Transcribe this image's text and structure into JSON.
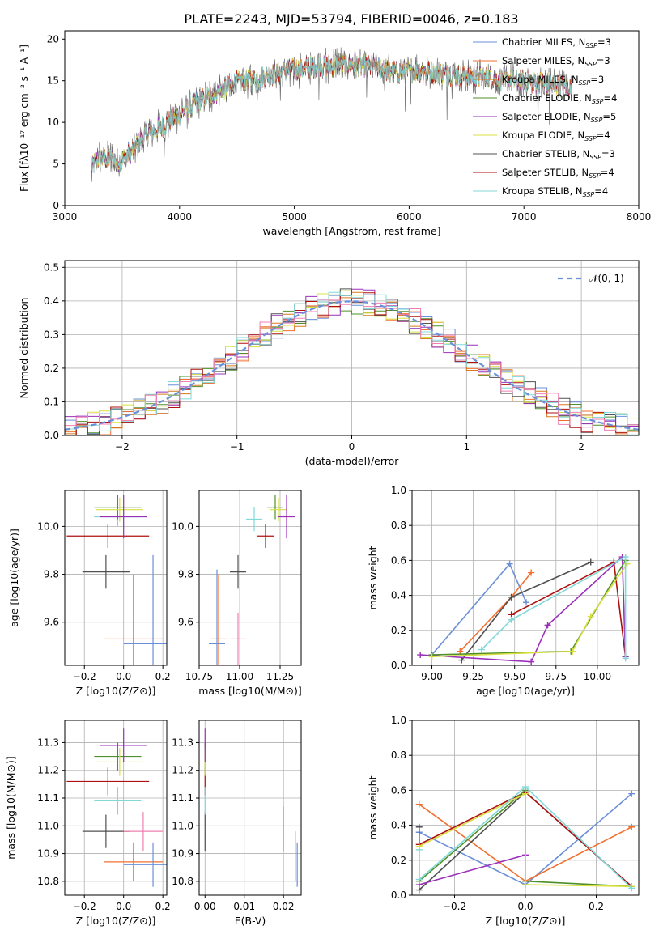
{
  "title": "PLATE=2243, MJD=53794, FIBERID=0046, z=0.183",
  "colors": {
    "grid": "#b0b0b0",
    "chabrier_miles": "#6a8fd8",
    "salpeter_miles": "#f07030",
    "kroupa_miles": "#d87820",
    "chabrier_elodie": "#4f8f2a",
    "salpeter_elodie": "#9a30b8",
    "kroupa_elodie": "#d8e040",
    "chabrier_stelib": "#505050",
    "salpeter_stelib": "#b01010",
    "kroupa_stelib": "#80d8d8",
    "pink": "#f080b0",
    "normal": "#6a8fd8"
  },
  "chart_data": [
    {
      "id": "spectrum",
      "type": "line",
      "xlabel": "wavelength [Angstrom, rest frame]",
      "ylabel": "Flux [fλ10⁻¹⁷ erg cm⁻² s⁻¹ A⁻¹]",
      "xlim": [
        3000,
        8000
      ],
      "ylim": [
        0,
        21
      ],
      "xticks": [
        3000,
        4000,
        5000,
        6000,
        7000,
        8000
      ],
      "yticks": [
        0,
        5,
        10,
        15,
        20
      ],
      "grid": false,
      "legend_position": "top-right",
      "continuum": [
        [
          3230,
          4.5
        ],
        [
          3300,
          5.8
        ],
        [
          3500,
          5.4
        ],
        [
          3600,
          6.8
        ],
        [
          3700,
          8.5
        ],
        [
          3850,
          9.5
        ],
        [
          3950,
          10.5
        ],
        [
          4050,
          11.5
        ],
        [
          4150,
          12.5
        ],
        [
          4300,
          13.5
        ],
        [
          4500,
          14.8
        ],
        [
          4700,
          15.3
        ],
        [
          4900,
          16.2
        ],
        [
          5100,
          16.5
        ],
        [
          5300,
          16.9
        ],
        [
          5500,
          17.0
        ],
        [
          5700,
          16.7
        ],
        [
          5900,
          16.0
        ],
        [
          6100,
          16.2
        ],
        [
          6300,
          15.8
        ],
        [
          6500,
          15.5
        ],
        [
          6700,
          15.3
        ],
        [
          6900,
          15.0
        ],
        [
          7100,
          14.8
        ],
        [
          7300,
          14.5
        ],
        [
          7420,
          14.0
        ]
      ],
      "series": [
        {
          "name": "Chabrier MILES, N_SSP=3",
          "color": "#6a8fd8"
        },
        {
          "name": "Salpeter MILES, N_SSP=3",
          "color": "#f07030"
        },
        {
          "name": "Kroupa MILES, N_SSP=3",
          "color": "#d87820"
        },
        {
          "name": "Chabrier ELODIE, N_SSP=4",
          "color": "#4f8f2a"
        },
        {
          "name": "Salpeter ELODIE, N_SSP=5",
          "color": "#9a30b8"
        },
        {
          "name": "Kroupa ELODIE, N_SSP=4",
          "color": "#d8e040"
        },
        {
          "name": "Chabrier STELIB, N_SSP=3",
          "color": "#505050"
        },
        {
          "name": "Salpeter STELIB, N_SSP=4",
          "color": "#b01010"
        },
        {
          "name": "Kroupa STELIB, N_SSP=4",
          "color": "#80d8d8"
        }
      ]
    },
    {
      "id": "residuals",
      "type": "line",
      "xlabel": "(data-model)/error",
      "ylabel": "Normed distribution",
      "xlim": [
        -2.5,
        2.5
      ],
      "ylim": [
        0,
        0.52
      ],
      "xticks": [
        -2,
        -1,
        0,
        1,
        2
      ],
      "yticks": [
        0.0,
        0.1,
        0.2,
        0.3,
        0.4,
        0.5
      ],
      "grid": true,
      "legend_position": "top-right",
      "legend": "𝒩(0, 1)",
      "bin_width": 0.1,
      "bin_start": -2.5,
      "hist_colors": [
        "#6a8fd8",
        "#f07030",
        "#d87820",
        "#4f8f2a",
        "#9a30b8",
        "#d8e040",
        "#505050",
        "#b01010",
        "#80d8d8",
        "#f080b0"
      ]
    },
    {
      "id": "age_vs_z",
      "type": "scatter",
      "xlabel": "Z [log10(Z/Z⊙)]",
      "ylabel": "age  [log10(age/yr)]",
      "xlim": [
        -0.3,
        0.22
      ],
      "ylim": [
        9.42,
        10.15
      ],
      "xticks": [
        -0.2,
        0.0,
        0.2
      ],
      "yticks": [
        9.6,
        9.8,
        10.0
      ],
      "grid": true,
      "points": [
        {
          "x": -0.09,
          "y": 9.81,
          "xerr": 0.12,
          "yerr": 0.07,
          "color": "#505050"
        },
        {
          "x": -0.08,
          "y": 9.96,
          "xerr": 0.21,
          "yerr": 0.05,
          "color": "#b01010"
        },
        {
          "x": -0.03,
          "y": 10.04,
          "xerr": 0.12,
          "yerr": 0.04,
          "color": "#80d8d8"
        },
        {
          "x": -0.03,
          "y": 10.08,
          "xerr": 0.12,
          "yerr": 0.05,
          "color": "#4f8f2a"
        },
        {
          "x": -0.02,
          "y": 10.07,
          "xerr": 0.12,
          "yerr": 0.05,
          "color": "#d8e040"
        },
        {
          "x": 0.0,
          "y": 10.04,
          "xerr": 0.12,
          "yerr": 0.09,
          "color": "#9a30b8"
        },
        {
          "x": 0.05,
          "y": 9.53,
          "xerr": 0.15,
          "yerr": 0.27,
          "color": "#f07030"
        },
        {
          "x": 0.15,
          "y": 9.51,
          "xerr": 0.15,
          "yerr": 0.37,
          "color": "#6a8fd8"
        }
      ]
    },
    {
      "id": "age_vs_mass",
      "type": "scatter",
      "xlabel": "mass [log10(M/M⊙)]",
      "ylabel": "",
      "xlim": [
        10.75,
        11.38
      ],
      "ylim": [
        9.42,
        10.15
      ],
      "xticks": [
        10.75,
        11.0,
        11.25
      ],
      "yticks": [
        9.6,
        9.8,
        10.0
      ],
      "grid": true,
      "points": [
        {
          "x": 10.99,
          "y": 9.81,
          "xerr": 0.05,
          "yerr": 0.07,
          "color": "#505050"
        },
        {
          "x": 11.16,
          "y": 9.96,
          "xerr": 0.05,
          "yerr": 0.05,
          "color": "#b01010"
        },
        {
          "x": 11.09,
          "y": 10.03,
          "xerr": 0.05,
          "yerr": 0.05,
          "color": "#80d8d8"
        },
        {
          "x": 11.22,
          "y": 10.08,
          "xerr": 0.05,
          "yerr": 0.05,
          "color": "#4f8f2a"
        },
        {
          "x": 11.24,
          "y": 10.07,
          "xerr": 0.05,
          "yerr": 0.05,
          "color": "#d8e040"
        },
        {
          "x": 11.29,
          "y": 10.04,
          "xerr": 0.05,
          "yerr": 0.09,
          "color": "#9a30b8"
        },
        {
          "x": 10.87,
          "y": 9.53,
          "xerr": 0.05,
          "yerr": 0.27,
          "color": "#f07030"
        },
        {
          "x": 10.86,
          "y": 9.51,
          "xerr": 0.05,
          "yerr": 0.31,
          "color": "#6a8fd8"
        },
        {
          "x": 10.99,
          "y": 9.53,
          "xerr": 0.05,
          "yerr": 0.11,
          "color": "#f080b0"
        }
      ]
    },
    {
      "id": "weight_vs_age",
      "type": "line",
      "xlabel": "age  [log10(age/yr)]",
      "ylabel": "mass weight",
      "xlim": [
        8.88,
        10.25
      ],
      "ylim": [
        0.0,
        1.0
      ],
      "xticks": [
        9.0,
        9.25,
        9.5,
        9.75,
        10.0
      ],
      "yticks": [
        0.0,
        0.2,
        0.4,
        0.6,
        0.8,
        1.0
      ],
      "grid": true,
      "series": [
        {
          "color": "#6a8fd8",
          "points": [
            [
              9.0,
              0.06
            ],
            [
              9.47,
              0.58
            ],
            [
              9.57,
              0.36
            ]
          ]
        },
        {
          "color": "#f07030",
          "points": [
            [
              9.17,
              0.08
            ],
            [
              9.48,
              0.39
            ],
            [
              9.6,
              0.53
            ]
          ]
        },
        {
          "color": "#505050",
          "points": [
            [
              9.18,
              0.03
            ],
            [
              9.48,
              0.39
            ],
            [
              9.96,
              0.59
            ]
          ]
        },
        {
          "color": "#b01010",
          "points": [
            [
              9.48,
              0.29
            ],
            [
              10.1,
              0.59
            ],
            [
              10.17,
              0.05
            ]
          ]
        },
        {
          "color": "#9a30b8",
          "points": [
            [
              8.93,
              0.06
            ],
            [
              9.6,
              0.02
            ],
            [
              9.7,
              0.23
            ],
            [
              10.15,
              0.62
            ],
            [
              10.17,
              0.05
            ]
          ]
        },
        {
          "color": "#4f8f2a",
          "points": [
            [
              9.0,
              0.06
            ],
            [
              9.84,
              0.08
            ],
            [
              10.17,
              0.6
            ]
          ]
        },
        {
          "color": "#d8e040",
          "points": [
            [
              9.0,
              0.05
            ],
            [
              9.85,
              0.08
            ],
            [
              9.96,
              0.28
            ],
            [
              10.18,
              0.58
            ]
          ]
        },
        {
          "color": "#80d8d8",
          "points": [
            [
              9.3,
              0.09
            ],
            [
              9.48,
              0.26
            ],
            [
              10.17,
              0.62
            ],
            [
              10.17,
              0.04
            ]
          ]
        }
      ]
    },
    {
      "id": "mass_vs_z",
      "type": "scatter",
      "xlabel": "Z [log10(Z/Z⊙)]",
      "ylabel": "mass [log10(M/M⊙)]",
      "xlim": [
        -0.3,
        0.22
      ],
      "ylim": [
        10.75,
        11.38
      ],
      "xticks": [
        -0.2,
        0.0,
        0.2
      ],
      "yticks": [
        10.8,
        10.9,
        11.0,
        11.1,
        11.2,
        11.3
      ],
      "grid": true,
      "points": [
        {
          "x": -0.09,
          "y": 10.98,
          "xerr": 0.12,
          "yerr": 0.06,
          "color": "#505050"
        },
        {
          "x": -0.08,
          "y": 11.16,
          "xerr": 0.21,
          "yerr": 0.05,
          "color": "#b01010"
        },
        {
          "x": -0.03,
          "y": 11.09,
          "xerr": 0.12,
          "yerr": 0.05,
          "color": "#80d8d8"
        },
        {
          "x": -0.03,
          "y": 11.25,
          "xerr": 0.12,
          "yerr": 0.05,
          "color": "#4f8f2a"
        },
        {
          "x": -0.02,
          "y": 11.23,
          "xerr": 0.12,
          "yerr": 0.05,
          "color": "#d8e040"
        },
        {
          "x": 0.0,
          "y": 11.29,
          "xerr": 0.12,
          "yerr": 0.06,
          "color": "#9a30b8"
        },
        {
          "x": 0.05,
          "y": 10.87,
          "xerr": 0.15,
          "yerr": 0.07,
          "color": "#f07030"
        },
        {
          "x": 0.15,
          "y": 10.86,
          "xerr": 0.15,
          "yerr": 0.08,
          "color": "#6a8fd8"
        },
        {
          "x": 0.1,
          "y": 10.98,
          "xerr": 0.1,
          "yerr": 0.07,
          "color": "#f080b0"
        }
      ]
    },
    {
      "id": "mass_vs_ebv",
      "type": "scatter",
      "xlabel": "E(B-V)",
      "ylabel": "",
      "xlim": [
        -0.0015,
        0.0245
      ],
      "ylim": [
        10.75,
        11.38
      ],
      "xticks": [
        0.0,
        0.01,
        0.02
      ],
      "yticks": [
        10.8,
        10.9,
        11.0,
        11.1,
        11.2,
        11.3
      ],
      "grid": true,
      "points": [
        {
          "x": 0.0,
          "y": 10.98,
          "xerr": 0.0,
          "yerr": 0.07,
          "color": "#505050"
        },
        {
          "x": 0.0,
          "y": 11.16,
          "xerr": 0.0,
          "yerr": 0.05,
          "color": "#b01010"
        },
        {
          "x": 0.0,
          "y": 11.09,
          "xerr": 0.0,
          "yerr": 0.05,
          "color": "#80d8d8"
        },
        {
          "x": 0.0,
          "y": 11.25,
          "xerr": 0.0,
          "yerr": 0.05,
          "color": "#4f8f2a"
        },
        {
          "x": 0.0,
          "y": 11.23,
          "xerr": 0.0,
          "yerr": 0.05,
          "color": "#d8e040"
        },
        {
          "x": 0.0,
          "y": 11.29,
          "xerr": 0.0,
          "yerr": 0.06,
          "color": "#9a30b8"
        },
        {
          "x": 0.023,
          "y": 10.89,
          "xerr": 0.0,
          "yerr": 0.09,
          "color": "#f07030"
        },
        {
          "x": 0.0235,
          "y": 10.86,
          "xerr": 0.0,
          "yerr": 0.08,
          "color": "#6a8fd8"
        },
        {
          "x": 0.02,
          "y": 10.99,
          "xerr": 0.0,
          "yerr": 0.08,
          "color": "#f080b0"
        }
      ]
    },
    {
      "id": "weight_vs_z",
      "type": "line",
      "xlabel": "Z [log10(Z/Z⊙)]",
      "ylabel": "mass weight",
      "xlim": [
        -0.32,
        0.32
      ],
      "ylim": [
        0.0,
        1.0
      ],
      "xticks": [
        -0.2,
        0.0,
        0.2
      ],
      "yticks": [
        0.0,
        0.2,
        0.4,
        0.6,
        0.8,
        1.0
      ],
      "grid": true,
      "series": [
        {
          "color": "#6a8fd8",
          "points": [
            [
              -0.3,
              0.36
            ],
            [
              0.0,
              0.06
            ],
            [
              0.3,
              0.58
            ]
          ]
        },
        {
          "color": "#f07030",
          "points": [
            [
              -0.3,
              0.52
            ],
            [
              0.0,
              0.08
            ],
            [
              0.3,
              0.39
            ]
          ]
        },
        {
          "color": "#505050",
          "points": [
            [
              -0.3,
              0.39
            ],
            [
              -0.3,
              0.03
            ],
            [
              0.0,
              0.59
            ],
            [
              0.3,
              0.05
            ]
          ]
        },
        {
          "color": "#b01010",
          "points": [
            [
              -0.3,
              0.29
            ],
            [
              0.0,
              0.59
            ],
            [
              0.3,
              0.05
            ]
          ]
        },
        {
          "color": "#9a30b8",
          "points": [
            [
              -0.3,
              0.06
            ],
            [
              0.0,
              0.23
            ]
          ]
        },
        {
          "color": "#4f8f2a",
          "points": [
            [
              -0.3,
              0.08
            ],
            [
              0.0,
              0.6
            ],
            [
              0.0,
              0.08
            ],
            [
              0.3,
              0.05
            ]
          ]
        },
        {
          "color": "#d8e040",
          "points": [
            [
              -0.3,
              0.28
            ],
            [
              0.0,
              0.58
            ],
            [
              0.0,
              0.06
            ],
            [
              0.3,
              0.05
            ]
          ]
        },
        {
          "color": "#80d8d8",
          "points": [
            [
              -0.3,
              0.26
            ],
            [
              -0.3,
              0.09
            ],
            [
              0.0,
              0.62
            ],
            [
              0.3,
              0.04
            ]
          ]
        }
      ]
    }
  ]
}
